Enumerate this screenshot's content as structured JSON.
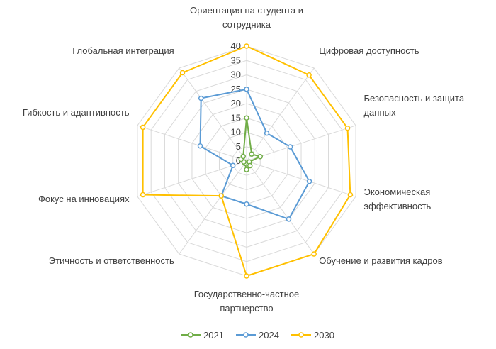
{
  "chart_data": {
    "type": "radar",
    "categories": [
      "Ориентация на студента и сотрудника",
      "Цифровая доступность",
      "Безопасность и защита данных",
      "Экономическая эффективность",
      "Обучение и развития кадров",
      "Государственно-частное партнерство",
      "Этичность и ответственность",
      "Фокус на инновациях",
      "Гибкость и адаптивность",
      "Глобальная интеграция"
    ],
    "category_lines": [
      [
        "Ориентация на студента и",
        "сотрудника"
      ],
      [
        "Цифровая доступность"
      ],
      [
        "Безопасность и защита",
        "данных"
      ],
      [
        "Экономическая",
        "эффективность"
      ],
      [
        "Обучение и развития кадров"
      ],
      [
        "Государственно-частное",
        "партнерство"
      ],
      [
        "Этичность и ответственность"
      ],
      [
        "Фокус на инновациях"
      ],
      [
        "Гибкость и адаптивность"
      ],
      [
        "Глобальная интеграция"
      ]
    ],
    "series": [
      {
        "name": "2021",
        "color": "#70AD47",
        "values": [
          15,
          3,
          5,
          1,
          2,
          3,
          1,
          1,
          2,
          2
        ]
      },
      {
        "name": "2024",
        "color": "#5B9BD5",
        "values": [
          25,
          12,
          16,
          23,
          25,
          15,
          15,
          5,
          17,
          27
        ]
      },
      {
        "name": "2030",
        "color": "#FFC000",
        "values": [
          40,
          37,
          37,
          38,
          40,
          40,
          15,
          38,
          38,
          38
        ]
      }
    ],
    "ticks": [
      "0",
      "5",
      "10",
      "15",
      "20",
      "25",
      "30",
      "35",
      "40"
    ],
    "rmin": 0,
    "rmax": 40,
    "grid": true,
    "legend": "bottom"
  }
}
